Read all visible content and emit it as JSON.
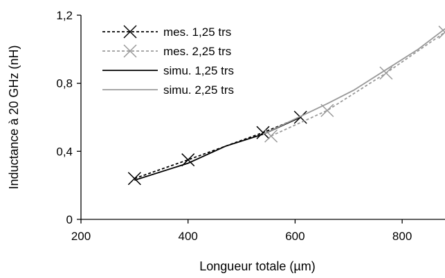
{
  "chart_data": {
    "type": "line",
    "xlabel": "Longueur totale (µm)",
    "ylabel": "Inductance à 20 GHz (nH)",
    "xlim": [
      200,
      880
    ],
    "ylim": [
      0,
      1.2
    ],
    "x_ticks": [
      200,
      400,
      600,
      800
    ],
    "x_tick_labels": [
      "200",
      "400",
      "600",
      "800"
    ],
    "y_ticks": [
      0,
      0.4,
      0.8,
      1.2
    ],
    "y_tick_labels": [
      "0",
      "0,4",
      "0,8",
      "1,2"
    ],
    "grid": false,
    "legend_position": "top-left",
    "series": [
      {
        "name": "mes. 1,25 trs",
        "style": "dashed",
        "marker": "x",
        "color": "#000000",
        "x": [
          300,
          400,
          540,
          610
        ],
        "y": [
          0.24,
          0.35,
          0.51,
          0.6
        ]
      },
      {
        "name": "mes. 2,25 trs",
        "style": "dashed",
        "marker": "x",
        "color": "#999999",
        "x": [
          555,
          660,
          770,
          880
        ],
        "y": [
          0.49,
          0.64,
          0.86,
          1.1
        ]
      },
      {
        "name": "simu. 1,25 trs",
        "style": "solid",
        "marker": "none",
        "color": "#000000",
        "x": [
          300,
          400,
          470,
          540,
          610
        ],
        "y": [
          0.23,
          0.33,
          0.43,
          0.5,
          0.6
        ]
      },
      {
        "name": "simu. 2,25 trs",
        "style": "solid",
        "marker": "none",
        "color": "#999999",
        "x": [
          540,
          600,
          660,
          710,
          770,
          830,
          880
        ],
        "y": [
          0.5,
          0.59,
          0.68,
          0.76,
          0.88,
          1.0,
          1.12
        ]
      }
    ]
  }
}
